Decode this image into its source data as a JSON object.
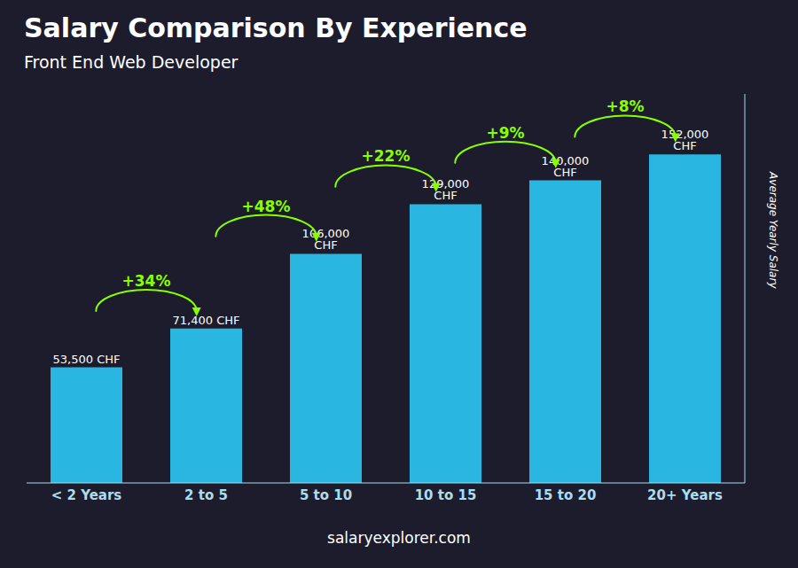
{
  "chart_data": {
    "type": "bar",
    "title": "Salary Comparison By Experience",
    "subtitle": "Front End Web Developer",
    "source": "salaryexplorer.com",
    "y_label": "Average Yearly Salary",
    "categories": [
      "< 2 Years",
      "2 to 5",
      "5 to 10",
      "10 to 15",
      "15 to 20",
      "20+ Years"
    ],
    "values": [
      53500,
      71400,
      106000,
      129000,
      140000,
      152000
    ],
    "value_labels": [
      "53,500 CHF",
      "71,400 CHF",
      "106,000 CHF",
      "129,000 CHF",
      "140,000 CHF",
      "152,000 CHF"
    ],
    "data_labels": true,
    "color": "#29b6e0",
    "ylim": [
      0,
      180000
    ],
    "tick_labels": "x",
    "grid": false,
    "annotations": [
      {
        "text": "+34%",
        "color": "#88ff00"
      },
      {
        "text": "+48%",
        "color": "#88ff00"
      },
      {
        "text": "+22%",
        "color": "#88ff00"
      },
      {
        "text": "+9%",
        "color": "#88ff00"
      },
      {
        "text": "+8%",
        "color": "#88ff00"
      }
    ]
  }
}
